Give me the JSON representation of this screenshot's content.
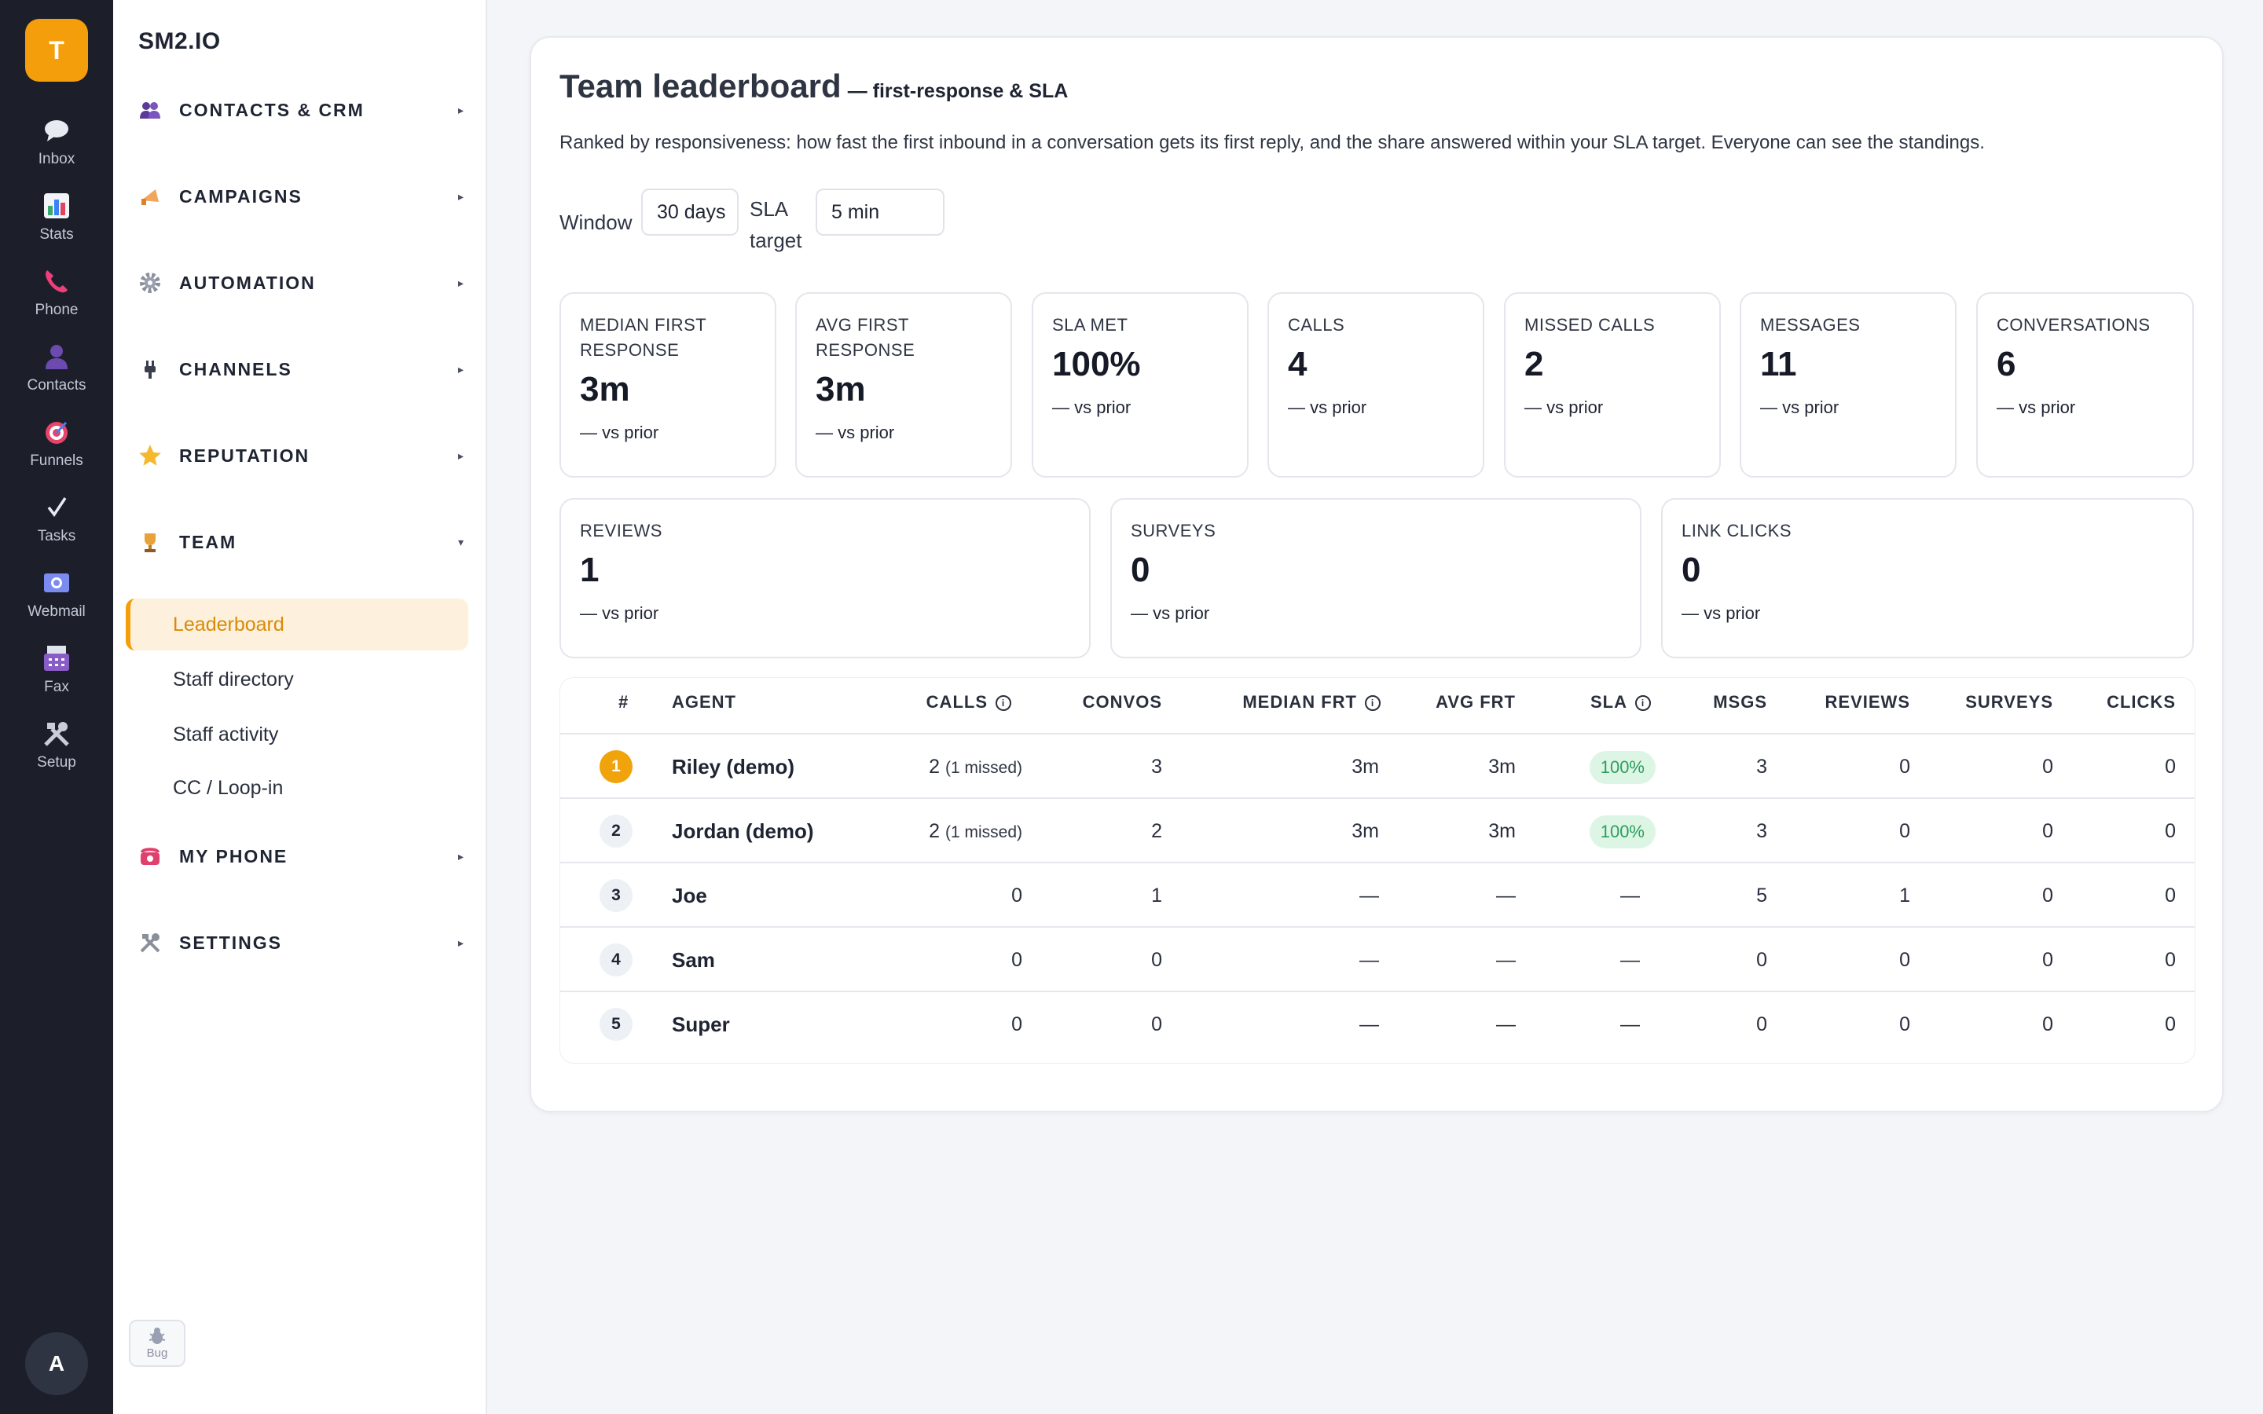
{
  "rail": {
    "logo": "T",
    "items": [
      {
        "label": "Inbox",
        "icon": "chat-bubble-icon"
      },
      {
        "label": "Stats",
        "icon": "bar-chart-icon"
      },
      {
        "label": "Phone",
        "icon": "phone-icon"
      },
      {
        "label": "Contacts",
        "icon": "person-icon"
      },
      {
        "label": "Funnels",
        "icon": "target-icon"
      },
      {
        "label": "Tasks",
        "icon": "checkmark-icon"
      },
      {
        "label": "Webmail",
        "icon": "email-icon"
      },
      {
        "label": "Fax",
        "icon": "fax-icon"
      },
      {
        "label": "Setup",
        "icon": "tools-icon"
      }
    ],
    "avatar": "A"
  },
  "sidebar": {
    "brand": "SM2.IO",
    "sections": [
      {
        "label": "CONTACTS & CRM",
        "icon": "people-icon",
        "caret": "▸"
      },
      {
        "label": "CAMPAIGNS",
        "icon": "megaphone-icon",
        "caret": "▸"
      },
      {
        "label": "AUTOMATION",
        "icon": "gear-icon",
        "caret": "▸"
      },
      {
        "label": "CHANNELS",
        "icon": "plug-icon",
        "caret": "▸"
      },
      {
        "label": "REPUTATION",
        "icon": "star-icon",
        "caret": "▸"
      },
      {
        "label": "TEAM",
        "icon": "trophy-icon",
        "caret": "▾"
      },
      {
        "label": "MY PHONE",
        "icon": "telephone-icon",
        "caret": "▸"
      },
      {
        "label": "SETTINGS",
        "icon": "tools-icon",
        "caret": "▸"
      }
    ],
    "team_items": [
      "Leaderboard",
      "Staff directory",
      "Staff activity",
      "CC / Loop-in"
    ],
    "active_item": "Leaderboard",
    "bug_label": "Bug"
  },
  "main": {
    "title": "Team leaderboard",
    "subtitle": "— first-response & SLA",
    "description": "Ranked by responsiveness: how fast the first inbound in a conversation gets its first reply, and the share answered within your SLA target. Everyone can see the standings.",
    "window_label": "Window",
    "window_value": "30 days",
    "sla_label_1": "SLA",
    "sla_label_2": "target",
    "sla_value": "5 min",
    "stats_row1": [
      {
        "label1": "MEDIAN FIRST",
        "label2": "RESPONSE",
        "value": "3m",
        "prior": "— vs prior"
      },
      {
        "label1": "AVG FIRST",
        "label2": "RESPONSE",
        "value": "3m",
        "prior": "— vs prior"
      },
      {
        "label1": "SLA MET",
        "label2": "",
        "value": "100%",
        "prior": "— vs prior"
      },
      {
        "label1": "CALLS",
        "label2": "",
        "value": "4",
        "prior": "— vs prior"
      },
      {
        "label1": "MISSED CALLS",
        "label2": "",
        "value": "2",
        "prior": "— vs prior"
      },
      {
        "label1": "MESSAGES",
        "label2": "",
        "value": "11",
        "prior": "— vs prior"
      },
      {
        "label1": "CONVERSATIONS",
        "label2": "",
        "value": "6",
        "prior": "— vs prior"
      }
    ],
    "stats_row2": [
      {
        "label1": "REVIEWS",
        "value": "1",
        "prior": "— vs prior"
      },
      {
        "label1": "SURVEYS",
        "value": "0",
        "prior": "— vs prior"
      },
      {
        "label1": "LINK CLICKS",
        "value": "0",
        "prior": "— vs prior"
      }
    ],
    "table": {
      "headers": [
        "#",
        "AGENT",
        "CALLS",
        "CONVOS",
        "MEDIAN FRT",
        "AVG FRT",
        "SLA",
        "MSGS",
        "REVIEWS",
        "SURVEYS",
        "CLICKS"
      ],
      "rows": [
        {
          "rank": "1",
          "agent": "Riley (demo)",
          "calls": "2",
          "missed": "(1 missed)",
          "convos": "3",
          "median": "3m",
          "avg": "3m",
          "sla": "100%",
          "msgs": "3",
          "reviews": "0",
          "surveys": "0",
          "clicks": "0"
        },
        {
          "rank": "2",
          "agent": "Jordan (demo)",
          "calls": "2",
          "missed": "(1 missed)",
          "convos": "2",
          "median": "3m",
          "avg": "3m",
          "sla": "100%",
          "msgs": "3",
          "reviews": "0",
          "surveys": "0",
          "clicks": "0"
        },
        {
          "rank": "3",
          "agent": "Joe",
          "calls": "0",
          "missed": "",
          "convos": "1",
          "median": "—",
          "avg": "—",
          "sla": "—",
          "msgs": "5",
          "reviews": "1",
          "surveys": "0",
          "clicks": "0"
        },
        {
          "rank": "4",
          "agent": "Sam",
          "calls": "0",
          "missed": "",
          "convos": "0",
          "median": "—",
          "avg": "—",
          "sla": "—",
          "msgs": "0",
          "reviews": "0",
          "surveys": "0",
          "clicks": "0"
        },
        {
          "rank": "5",
          "agent": "Super",
          "calls": "0",
          "missed": "",
          "convos": "0",
          "median": "—",
          "avg": "—",
          "sla": "—",
          "msgs": "0",
          "reviews": "0",
          "surveys": "0",
          "clicks": "0"
        }
      ]
    }
  },
  "colors": {
    "accent": "#f59e0b",
    "rail_bg": "#1c1f2a",
    "sla_green": "#2e9e5b"
  }
}
